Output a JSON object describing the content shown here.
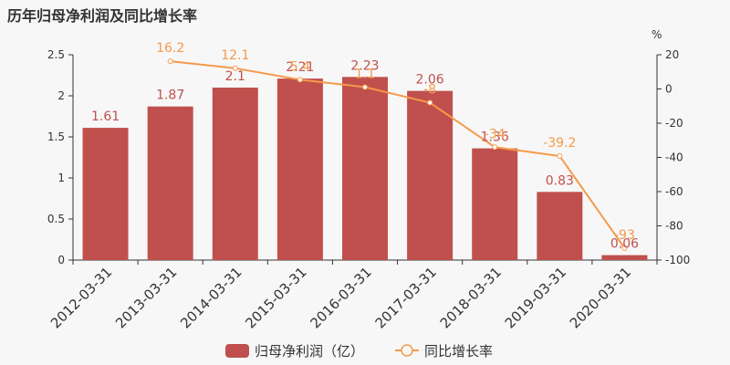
{
  "title": "历年归母净利润及同比增长率",
  "colors": {
    "bar": "#c0504d",
    "line": "#f59a4a",
    "background": "#f7f7f7"
  },
  "chart_data": {
    "type": "bar",
    "title": "历年归母净利润及同比增长率",
    "categories": [
      "2012-03-31",
      "2013-03-31",
      "2014-03-31",
      "2015-03-31",
      "2016-03-31",
      "2017-03-31",
      "2018-03-31",
      "2019-03-31",
      "2020-03-31"
    ],
    "series": [
      {
        "name": "归母净利润（亿）",
        "type": "bar",
        "axis": "left",
        "values": [
          1.61,
          1.87,
          2.1,
          2.21,
          2.23,
          2.06,
          1.36,
          0.83,
          0.06
        ],
        "labels": [
          "1.61",
          "1.87",
          "2.1",
          "2.21",
          "2.23",
          "2.06",
          "1.36",
          "0.83",
          "0.06"
        ]
      },
      {
        "name": "同比增长率",
        "type": "line",
        "axis": "right",
        "values": [
          null,
          16.2,
          12.1,
          5.4,
          1.1,
          -8,
          -34,
          -39.2,
          -93
        ],
        "labels": [
          "",
          "16.2",
          "12.1",
          "5.4",
          "1.1",
          "-8",
          "-34",
          "-39.2",
          "-93"
        ]
      }
    ],
    "y_left": {
      "ylim": [
        0,
        2.5
      ],
      "ticks": [
        "0",
        "0.5",
        "1",
        "1.5",
        "2",
        "2.5"
      ]
    },
    "y_right": {
      "ylim": [
        -100,
        20
      ],
      "ticks": [
        "-100",
        "-80",
        "-60",
        "-40",
        "-20",
        "0",
        "20"
      ],
      "unit": "%"
    },
    "grid": false,
    "legend": "bottom-center"
  }
}
